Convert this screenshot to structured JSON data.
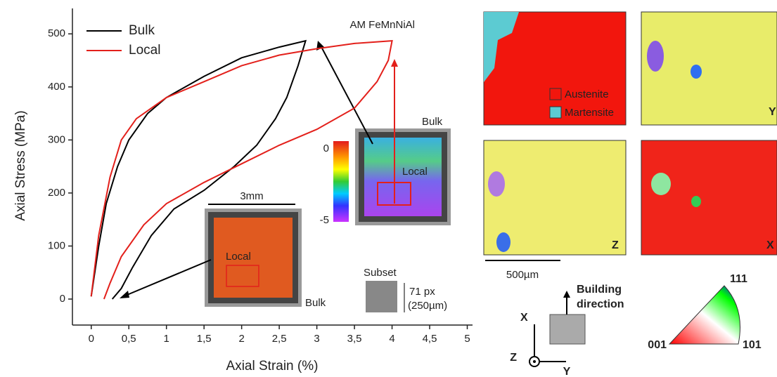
{
  "chart_data": {
    "type": "line",
    "title": "AM FeMnNiAl",
    "x_label": "Axial Strain (%)",
    "y_label": "Axial Stress (MPa)",
    "xlim": [
      -0.25,
      5.07
    ],
    "ylim": [
      -49,
      548
    ],
    "xticks": [
      0,
      {
        "value": 0.5,
        "label": "0,5"
      },
      1,
      {
        "value": 1.5,
        "label": "1,5"
      },
      2,
      {
        "value": 2.5,
        "label": "2,5"
      },
      3,
      {
        "value": 3.5,
        "label": "3,5"
      },
      4,
      {
        "value": 4.5,
        "label": "4,5"
      },
      5
    ],
    "yticks": [
      0,
      100,
      200,
      300,
      400,
      500
    ],
    "legend": "upper left",
    "series": [
      {
        "name": "Bulk",
        "color": "#000000",
        "x": [
          0,
          0.1,
          0.2,
          0.35,
          0.5,
          0.75,
          1,
          1.5,
          2,
          2.5,
          2.85,
          2.75,
          2.6,
          2.45,
          2.2,
          1.9,
          1.5,
          1.1,
          0.8,
          0.55,
          0.4,
          0.28
        ],
        "values": [
          5,
          100,
          180,
          250,
          300,
          350,
          380,
          420,
          455,
          475,
          487,
          440,
          380,
          340,
          290,
          250,
          205,
          170,
          120,
          60,
          20,
          0
        ]
      },
      {
        "name": "Local",
        "color": "#e3201b",
        "x": [
          0,
          0.1,
          0.25,
          0.4,
          0.6,
          1,
          1.5,
          2,
          2.5,
          3,
          3.5,
          4,
          3.95,
          3.8,
          3.5,
          3,
          2.5,
          2,
          1.5,
          1,
          0.7,
          0.4,
          0.25,
          0.17
        ],
        "values": [
          5,
          120,
          230,
          300,
          340,
          380,
          410,
          440,
          460,
          472,
          482,
          487,
          450,
          410,
          360,
          320,
          290,
          255,
          220,
          180,
          140,
          80,
          30,
          0
        ]
      }
    ],
    "insets": {
      "scale": "3mm",
      "local_a": "Local",
      "bulk_a": "Bulk",
      "local_b": "Local",
      "bulk_b": "Bulk",
      "subset": "Subset",
      "subset_px": "71 px",
      "subset_um": "(250µm)"
    },
    "colorbar_ticks": [
      0,
      -5
    ]
  },
  "ebsd": {
    "phase_legend": [
      "Austenite",
      "Martensite"
    ],
    "map_labels": [
      "Y",
      "Z",
      "X"
    ],
    "scale_bar": "500µm",
    "building_direction": [
      "Building",
      "direction"
    ],
    "axes": [
      "X",
      "Z",
      "Y"
    ],
    "ipf_labels": [
      "111",
      "001",
      "101"
    ]
  }
}
